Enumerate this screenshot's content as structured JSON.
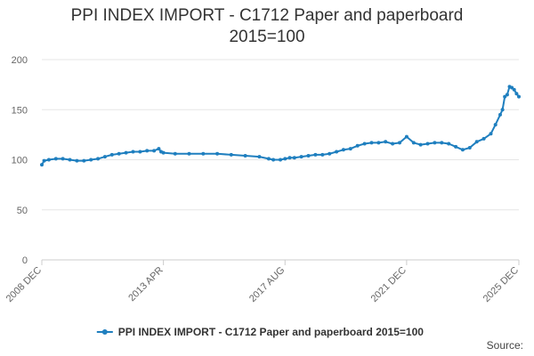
{
  "title_lines": [
    "PPI INDEX IMPORT - C1712 Paper and paperboard",
    "2015=100"
  ],
  "source_label": "Source:",
  "legend": {
    "label": "PPI INDEX IMPORT - C1712 Paper and paperboard 2015=100",
    "placement": "bottom-center"
  },
  "colors": {
    "series": "#1f7fbf",
    "grid": "#e6e6e6",
    "axis_text": "#666666"
  },
  "chart_data": {
    "type": "line",
    "title": "PPI INDEX IMPORT - C1712 Paper and paperboard 2015=100",
    "xlabel": "",
    "ylabel": "",
    "ylim": [
      0,
      200
    ],
    "yticks": [
      0,
      50,
      100,
      150,
      200
    ],
    "grid": "horizontal",
    "x_range": [
      "2008 DEC",
      "2025 DEC"
    ],
    "x_tick_labels": [
      "2008 DEC",
      "2013 APR",
      "2017 AUG",
      "2021 DEC",
      "2025 DEC"
    ],
    "series": [
      {
        "name": "PPI INDEX IMPORT - C1712 Paper and paperboard 2015=100",
        "points": [
          [
            "2008 DEC",
            95
          ],
          [
            "2009 JAN",
            99
          ],
          [
            "2009 MAR",
            100
          ],
          [
            "2009 JUN",
            101
          ],
          [
            "2009 SEP",
            101
          ],
          [
            "2009 DEC",
            100
          ],
          [
            "2010 MAR",
            99
          ],
          [
            "2010 JUN",
            99
          ],
          [
            "2010 SEP",
            100
          ],
          [
            "2010 DEC",
            101
          ],
          [
            "2011 MAR",
            103
          ],
          [
            "2011 JUN",
            105
          ],
          [
            "2011 SEP",
            106
          ],
          [
            "2011 DEC",
            107
          ],
          [
            "2012 MAR",
            108
          ],
          [
            "2012 JUN",
            108
          ],
          [
            "2012 SEP",
            109
          ],
          [
            "2012 DEC",
            109
          ],
          [
            "2013 FEB",
            111
          ],
          [
            "2013 MAR",
            108
          ],
          [
            "2013 APR",
            107
          ],
          [
            "2013 SEP",
            106
          ],
          [
            "2014 MAR",
            106
          ],
          [
            "2014 SEP",
            106
          ],
          [
            "2015 MAR",
            106
          ],
          [
            "2015 SEP",
            105
          ],
          [
            "2016 MAR",
            104
          ],
          [
            "2016 SEP",
            103
          ],
          [
            "2017 JAN",
            101
          ],
          [
            "2017 MAR",
            100
          ],
          [
            "2017 JUN",
            100
          ],
          [
            "2017 AUG",
            101
          ],
          [
            "2017 OCT",
            102
          ],
          [
            "2017 DEC",
            102
          ],
          [
            "2018 MAR",
            103
          ],
          [
            "2018 JUN",
            104
          ],
          [
            "2018 SEP",
            105
          ],
          [
            "2018 DEC",
            105
          ],
          [
            "2019 MAR",
            106
          ],
          [
            "2019 JUN",
            108
          ],
          [
            "2019 SEP",
            110
          ],
          [
            "2019 DEC",
            111
          ],
          [
            "2020 MAR",
            114
          ],
          [
            "2020 JUN",
            116
          ],
          [
            "2020 SEP",
            117
          ],
          [
            "2020 DEC",
            117
          ],
          [
            "2021 MAR",
            118
          ],
          [
            "2021 JUN",
            116
          ],
          [
            "2021 SEP",
            117
          ],
          [
            "2021 DEC",
            123
          ],
          [
            "2022 MAR",
            117
          ],
          [
            "2022 JUN",
            115
          ],
          [
            "2022 SEP",
            116
          ],
          [
            "2022 DEC",
            117
          ],
          [
            "2023 MAR",
            117
          ],
          [
            "2023 JUN",
            116
          ],
          [
            "2023 SEP",
            113
          ],
          [
            "2023 DEC",
            110
          ],
          [
            "2024 MAR",
            112
          ],
          [
            "2024 JUN",
            118
          ],
          [
            "2024 SEP",
            121
          ],
          [
            "2024 DEC",
            126
          ],
          [
            "2025 FEB",
            135
          ],
          [
            "2025 APR",
            145
          ],
          [
            "2025 MAY",
            150
          ],
          [
            "2025 JUN",
            163
          ],
          [
            "2025 JUL",
            165
          ],
          [
            "2025 AUG",
            173
          ],
          [
            "2025 SEP",
            172
          ],
          [
            "2025 OCT",
            170
          ],
          [
            "2025 NOV",
            166
          ],
          [
            "2025 DEC",
            163
          ]
        ]
      }
    ]
  }
}
